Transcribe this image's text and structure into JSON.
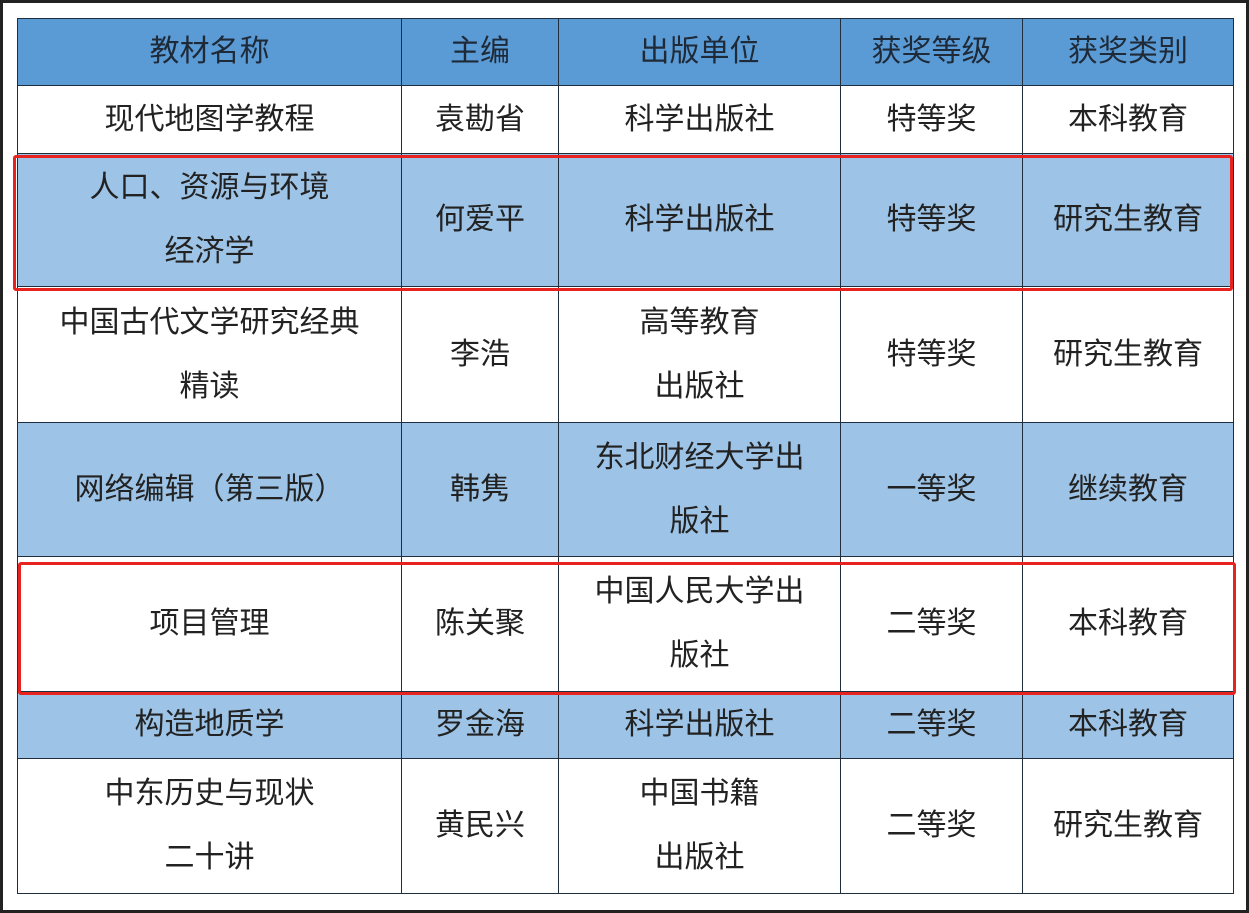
{
  "columns": [
    "教材名称",
    "主编",
    "出版单位",
    "获奖等级",
    "获奖类别"
  ],
  "rows": [
    {
      "name": "现代地图学教程",
      "editor": "袁勘省",
      "publisher": "科学出版社",
      "level": "特等奖",
      "category": "本科教育",
      "shade": "white",
      "highlighted": false
    },
    {
      "name": "人口、资源与环境经济学",
      "editor": "何爱平",
      "publisher": "科学出版社",
      "level": "特等奖",
      "category": "研究生教育",
      "shade": "light",
      "highlighted": true
    },
    {
      "name": "中国古代文学研究经典精读",
      "editor": "李浩",
      "publisher": "高等教育出版社",
      "level": "特等奖",
      "category": "研究生教育",
      "shade": "white",
      "highlighted": false
    },
    {
      "name": "网络编辑（第三版）",
      "editor": "韩隽",
      "publisher": "东北财经大学出版社",
      "level": "一等奖",
      "category": "继续教育",
      "shade": "light",
      "highlighted": false
    },
    {
      "name": "项目管理",
      "editor": "陈关聚",
      "publisher": "中国人民大学出版社",
      "level": "二等奖",
      "category": "本科教育",
      "shade": "white",
      "highlighted": true
    },
    {
      "name": "构造地质学",
      "editor": "罗金海",
      "publisher": "科学出版社",
      "level": "二等奖",
      "category": "本科教育",
      "shade": "light",
      "highlighted": false
    },
    {
      "name": "中东历史与现状二十讲",
      "editor": "黄民兴",
      "publisher": "中国书籍出版社",
      "level": "二等奖",
      "category": "研究生教育",
      "shade": "white",
      "highlighted": false
    }
  ],
  "colors": {
    "header": "#5b9bd5",
    "light_row": "#9dc3e6",
    "highlight": "#e8231f"
  }
}
